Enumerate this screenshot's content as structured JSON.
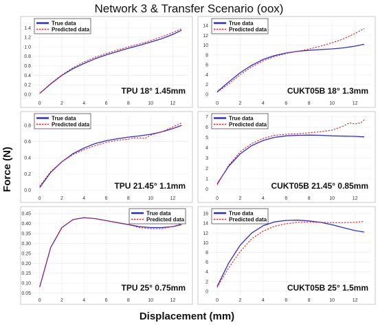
{
  "figure": {
    "title": "Network 3 & Transfer Scenario (oox)",
    "xlabel": "Displacement (mm)",
    "ylabel": "Force (N)"
  },
  "colors": {
    "true": "#2b2bdc",
    "pred": "#e02020"
  },
  "legend": {
    "true_label": "True data",
    "pred_label": "Predicted data"
  },
  "chart_data": [
    {
      "type": "line",
      "label": "TPU 18° 1.45mm",
      "xlim": [
        -0.6,
        13.4
      ],
      "ylim": [
        -0.1,
        1.55
      ],
      "xticks": [
        0,
        2,
        4,
        6,
        8,
        10,
        12
      ],
      "yticks": [
        0.0,
        0.2,
        0.4,
        0.6,
        0.8,
        1.0,
        1.2,
        1.4
      ],
      "ytick_decimals": 1,
      "legend_position": "top-left",
      "series": [
        {
          "name": "True data",
          "style": "solid",
          "x": [
            0,
            1,
            2,
            3,
            4,
            5,
            6,
            7,
            8,
            9,
            10,
            11,
            12,
            12.8
          ],
          "y": [
            0.02,
            0.22,
            0.4,
            0.54,
            0.65,
            0.75,
            0.83,
            0.9,
            0.97,
            1.03,
            1.1,
            1.17,
            1.26,
            1.35
          ]
        },
        {
          "name": "Predicted data",
          "style": "dashed",
          "x": [
            0,
            1,
            2,
            3,
            4,
            5,
            6,
            7,
            8,
            9,
            10,
            11,
            12,
            12.8
          ],
          "y": [
            0.02,
            0.23,
            0.41,
            0.56,
            0.68,
            0.78,
            0.86,
            0.93,
            1.0,
            1.06,
            1.13,
            1.21,
            1.3,
            1.38
          ]
        }
      ]
    },
    {
      "type": "line",
      "label": "CUKT05B 18° 1.3mm",
      "xlim": [
        -0.6,
        13.4
      ],
      "ylim": [
        -1,
        15
      ],
      "xticks": [
        0,
        2,
        4,
        6,
        8,
        10,
        12
      ],
      "yticks": [
        0,
        2,
        4,
        6,
        8,
        10,
        12,
        14
      ],
      "ytick_decimals": 0,
      "legend_position": "top-left",
      "series": [
        {
          "name": "True data",
          "style": "solid",
          "x": [
            0,
            1,
            2,
            3,
            4,
            5,
            6,
            7,
            8,
            9,
            10,
            11,
            12,
            12.8
          ],
          "y": [
            0.5,
            2.5,
            4.4,
            5.9,
            7.1,
            7.9,
            8.4,
            8.75,
            8.95,
            9.1,
            9.25,
            9.45,
            9.8,
            10.2
          ]
        },
        {
          "name": "Predicted data",
          "style": "dashed",
          "x": [
            0,
            1,
            2,
            3,
            4,
            5,
            6,
            7,
            8,
            9,
            10,
            11,
            12,
            12.8
          ],
          "y": [
            0.4,
            2.1,
            4.0,
            5.6,
            6.8,
            7.7,
            8.3,
            8.75,
            9.2,
            9.8,
            10.5,
            11.3,
            12.4,
            13.4
          ]
        }
      ]
    },
    {
      "type": "line",
      "label": "TPU 21.45° 1.1mm",
      "xlim": [
        -0.6,
        13.4
      ],
      "ylim": [
        -0.05,
        0.92
      ],
      "xticks": [
        0,
        2,
        4,
        6,
        8,
        10,
        12
      ],
      "yticks": [
        0.0,
        0.2,
        0.4,
        0.6,
        0.8
      ],
      "ytick_decimals": 1,
      "legend_position": "top-left",
      "series": [
        {
          "name": "True data",
          "style": "solid",
          "x": [
            0,
            1,
            2,
            3,
            4,
            5,
            6,
            7,
            8,
            9,
            10,
            11,
            12,
            12.8
          ],
          "y": [
            0.03,
            0.22,
            0.35,
            0.45,
            0.52,
            0.575,
            0.61,
            0.635,
            0.655,
            0.67,
            0.69,
            0.72,
            0.76,
            0.8
          ]
        },
        {
          "name": "Predicted data",
          "style": "dashed",
          "x": [
            0,
            1,
            2,
            3,
            4,
            5,
            6,
            7,
            8,
            8.5,
            9,
            9.5,
            10,
            11,
            12,
            12.8
          ],
          "y": [
            0.05,
            0.23,
            0.35,
            0.44,
            0.5,
            0.55,
            0.59,
            0.615,
            0.63,
            0.645,
            0.645,
            0.64,
            0.68,
            0.72,
            0.78,
            0.83
          ]
        }
      ]
    },
    {
      "type": "line",
      "label": "CUKT05B 21.45° 0.85mm",
      "xlim": [
        -0.6,
        13.4
      ],
      "ylim": [
        -0.5,
        7.1
      ],
      "xticks": [
        0,
        2,
        4,
        6,
        8,
        10,
        12
      ],
      "yticks": [
        0,
        1,
        2,
        3,
        4,
        5,
        6,
        7
      ],
      "ytick_decimals": 0,
      "legend_position": "top-left",
      "series": [
        {
          "name": "True data",
          "style": "solid",
          "x": [
            0,
            1,
            2,
            3,
            4,
            5,
            6,
            7,
            8,
            9,
            10,
            11,
            12,
            12.8
          ],
          "y": [
            0.5,
            2.2,
            3.4,
            4.2,
            4.7,
            5.0,
            5.15,
            5.2,
            5.22,
            5.2,
            5.15,
            5.12,
            5.1,
            5.05
          ]
        },
        {
          "name": "Predicted data",
          "style": "dashed",
          "x": [
            0,
            1,
            2,
            3,
            4,
            5,
            6,
            7,
            8,
            9,
            10,
            11,
            11.5,
            12,
            12.5,
            12.8
          ],
          "y": [
            0.4,
            2.3,
            3.6,
            4.4,
            4.9,
            5.2,
            5.3,
            5.35,
            5.45,
            5.55,
            5.7,
            6.1,
            6.4,
            6.3,
            6.4,
            6.7
          ]
        }
      ]
    },
    {
      "type": "line",
      "label": "TPU 25° 0.75mm",
      "xlim": [
        -0.6,
        13.4
      ],
      "ylim": [
        0.035,
        0.465
      ],
      "xticks": [
        0,
        2,
        4,
        6,
        8,
        10,
        12
      ],
      "yticks": [
        0.05,
        0.1,
        0.15,
        0.2,
        0.25,
        0.3,
        0.35,
        0.4,
        0.45
      ],
      "ytick_decimals": 2,
      "legend_position": "top-right",
      "series": [
        {
          "name": "True data",
          "style": "solid",
          "x": [
            0,
            1,
            2,
            3,
            4,
            5,
            6,
            7,
            8,
            9,
            10,
            11,
            12,
            12.8
          ],
          "y": [
            0.08,
            0.28,
            0.38,
            0.42,
            0.43,
            0.425,
            0.415,
            0.405,
            0.395,
            0.385,
            0.38,
            0.38,
            0.385,
            0.395
          ]
        },
        {
          "name": "Predicted data",
          "style": "dashed",
          "x": [
            0,
            1,
            2,
            3,
            4,
            5,
            6,
            7,
            8,
            9,
            10,
            11,
            12,
            12.8
          ],
          "y": [
            0.08,
            0.28,
            0.38,
            0.42,
            0.43,
            0.425,
            0.415,
            0.405,
            0.395,
            0.38,
            0.375,
            0.375,
            0.385,
            0.4
          ]
        }
      ]
    },
    {
      "type": "line",
      "label": "CUKT05B 25° 1.5mm",
      "xlim": [
        -0.6,
        13.4
      ],
      "ylim": [
        -1,
        16.6
      ],
      "xticks": [
        0,
        2,
        4,
        6,
        8,
        10,
        12
      ],
      "yticks": [
        0,
        2,
        4,
        6,
        8,
        10,
        12,
        14,
        16
      ],
      "ytick_decimals": 0,
      "legend_position": "top-left",
      "series": [
        {
          "name": "True data",
          "style": "solid",
          "x": [
            0,
            1,
            2,
            3,
            4,
            5,
            6,
            7,
            8,
            9,
            10,
            11,
            12,
            12.8
          ],
          "y": [
            1.0,
            5.8,
            9.5,
            12.0,
            13.5,
            14.3,
            14.6,
            14.65,
            14.5,
            14.2,
            13.7,
            13.1,
            12.5,
            12.2
          ]
        },
        {
          "name": "Predicted data",
          "style": "dashed",
          "x": [
            0,
            1,
            2,
            3,
            4,
            5,
            6,
            7,
            8,
            9,
            10,
            11,
            12,
            12.8
          ],
          "y": [
            0.8,
            4.8,
            8.2,
            10.8,
            12.4,
            13.4,
            13.9,
            14.2,
            14.25,
            14.2,
            14.15,
            14.15,
            14.2,
            14.4
          ]
        }
      ]
    }
  ]
}
